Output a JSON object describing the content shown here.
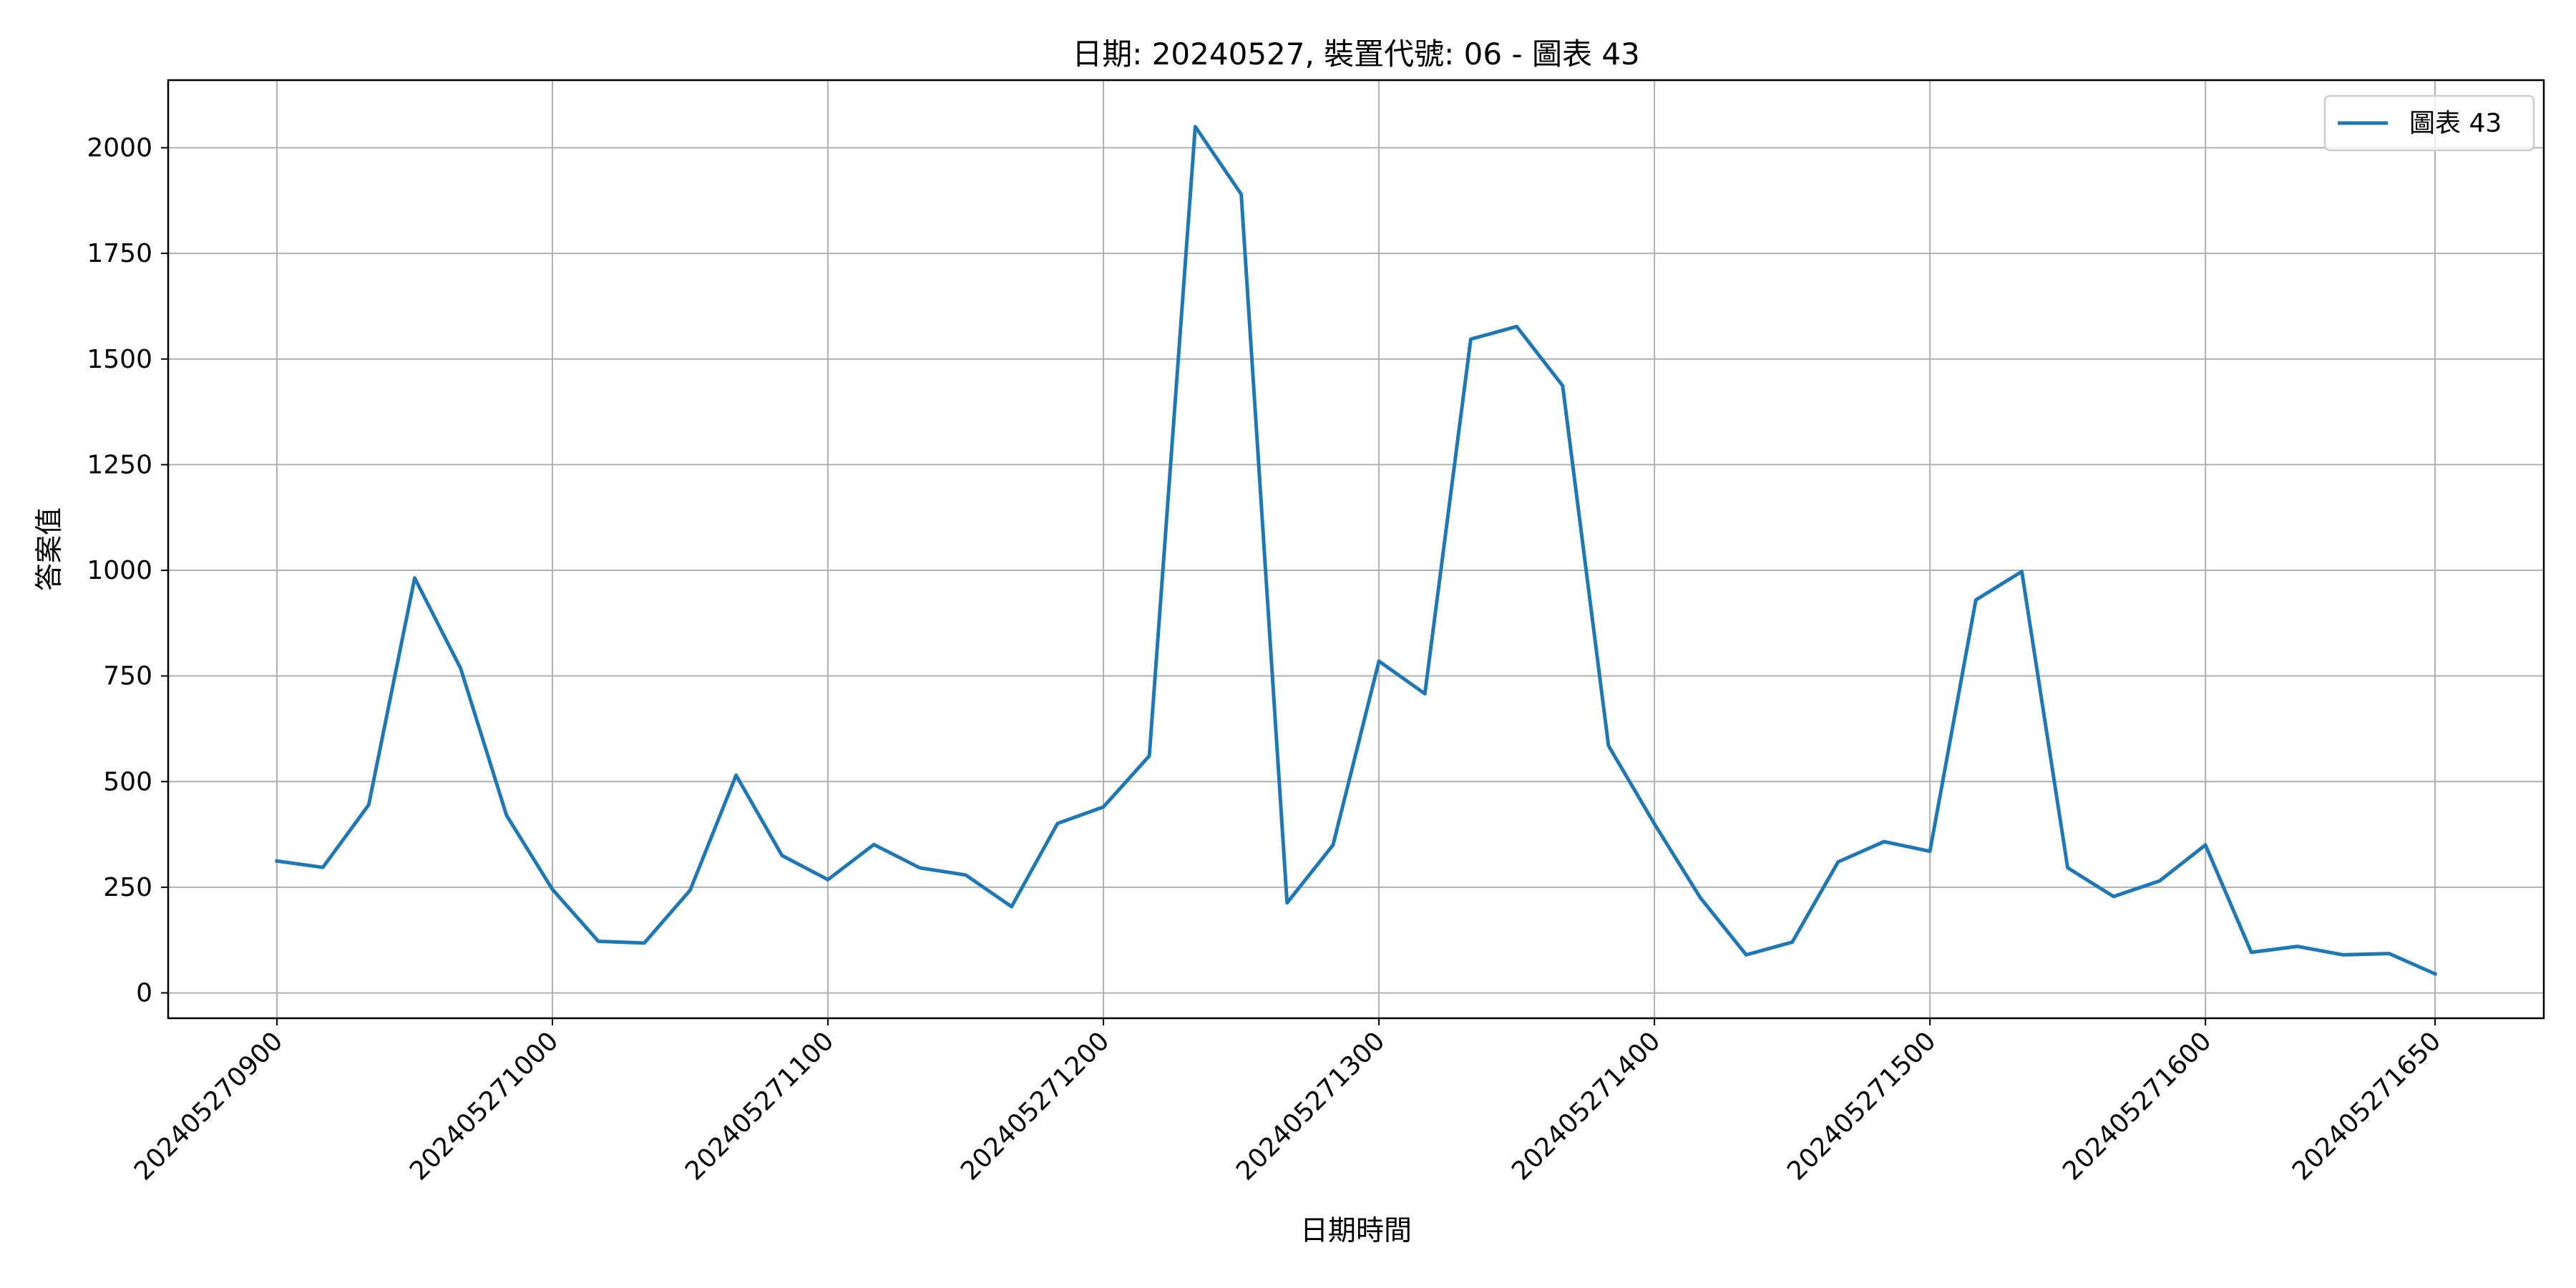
{
  "chart_data": {
    "type": "line",
    "title": "日期: 20240527, 裝置代號: 06 - 圖表 43",
    "xlabel": "日期時間",
    "ylabel": "答案值",
    "x_tick_labels": [
      "202405270900",
      "202405271000",
      "202405271100",
      "202405271200",
      "202405271300",
      "202405271400",
      "202405271500",
      "202405271600",
      "202405271650"
    ],
    "x": [
      "202405270900",
      "202405270910",
      "202405270920",
      "202405270930",
      "202405270940",
      "202405270950",
      "202405271000",
      "202405271010",
      "202405271020",
      "202405271030",
      "202405271040",
      "202405271050",
      "202405271100",
      "202405271110",
      "202405271120",
      "202405271130",
      "202405271140",
      "202405271150",
      "202405271200",
      "202405271210",
      "202405271220",
      "202405271230",
      "202405271240",
      "202405271250",
      "202405271300",
      "202405271310",
      "202405271320",
      "202405271330",
      "202405271340",
      "202405271350",
      "202405271400",
      "202405271410",
      "202405271420",
      "202405271430",
      "202405271440",
      "202405271450",
      "202405271500",
      "202405271510",
      "202405271520",
      "202405271530",
      "202405271540",
      "202405271550",
      "202405271600",
      "202405271610",
      "202405271620",
      "202405271630",
      "202405271640",
      "202405271650"
    ],
    "y_ticks": [
      0,
      250,
      500,
      750,
      1000,
      1250,
      1500,
      1750,
      2000
    ],
    "ylim": [
      -60,
      2160
    ],
    "grid": true,
    "legend_position": "top-right",
    "series": [
      {
        "name": "圖表 43",
        "color": "#1f77b4",
        "values": [
          312,
          297,
          445,
          982,
          768,
          420,
          245,
          122,
          118,
          243,
          515,
          325,
          268,
          351,
          296,
          279,
          204,
          401,
          440,
          561,
          2050,
          1890,
          213,
          350,
          785,
          708,
          1547,
          1577,
          1437,
          585,
          400,
          225,
          90,
          120,
          310,
          358,
          335,
          930,
          997,
          296,
          228,
          265,
          350,
          96,
          110,
          90,
          93,
          45
        ]
      }
    ]
  }
}
